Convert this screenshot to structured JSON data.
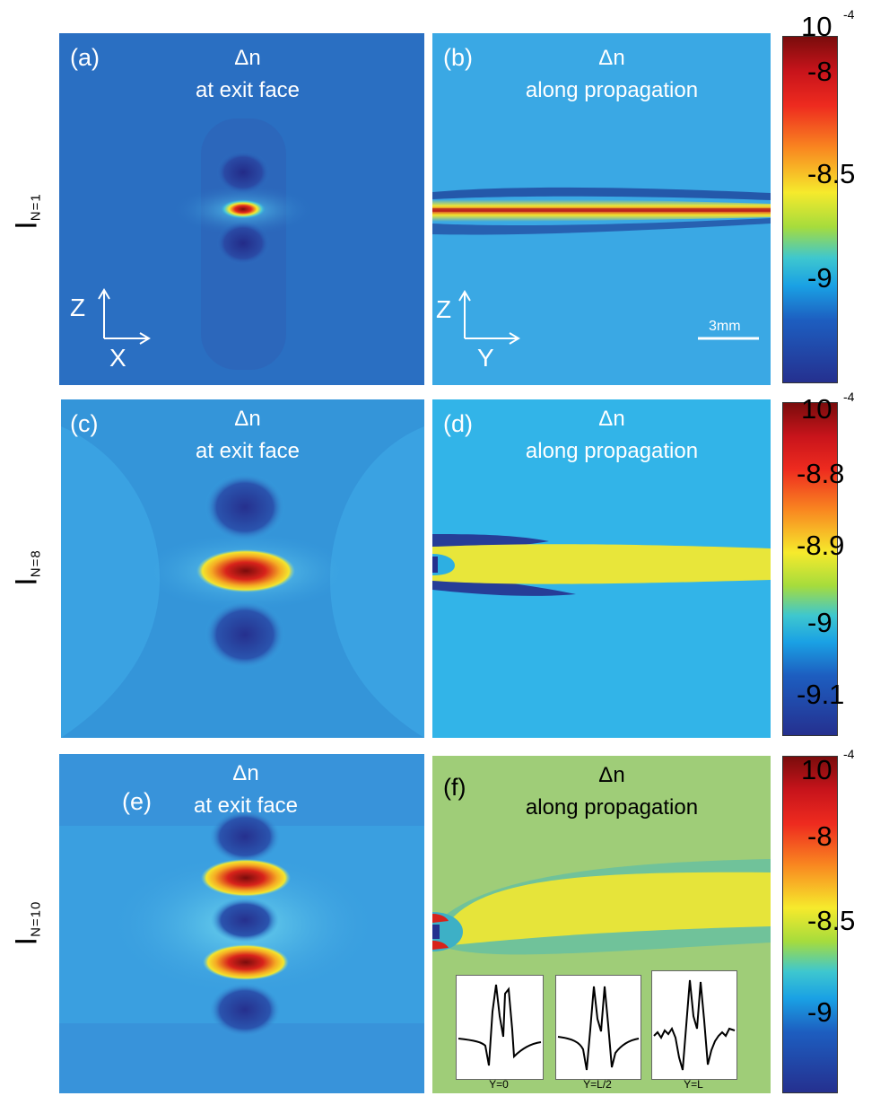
{
  "rows": [
    {
      "label_main": "I",
      "label_sub": "N=1"
    },
    {
      "label_main": "I",
      "label_sub": "N=8"
    },
    {
      "label_main": "I",
      "label_sub": "N=10"
    }
  ],
  "panels": {
    "a": {
      "tag": "(a)",
      "title_1": "Δn",
      "title_2": "at exit face",
      "axis_v": "Z",
      "axis_h": "X"
    },
    "b": {
      "tag": "(b)",
      "title_1": "Δn",
      "title_2": "along propagation",
      "axis_v": "Z",
      "axis_h": "Y",
      "scale": "3mm"
    },
    "c": {
      "tag": "(c)",
      "title_1": "Δn",
      "title_2": "at exit face"
    },
    "d": {
      "tag": "(d)",
      "title_1": "Δn",
      "title_2": "along propagation"
    },
    "e": {
      "tag": "(e)",
      "title_1": "Δn",
      "title_2": "at exit face"
    },
    "f": {
      "tag": "(f)",
      "title_1": "Δn",
      "title_2": "along propagation"
    }
  },
  "colorbars": [
    {
      "exponent": "10",
      "exp_power": "-4",
      "ticks": [
        "-8",
        "-8.5",
        "-9"
      ]
    },
    {
      "exponent": "10",
      "exp_power": "-4",
      "ticks": [
        "-8.8",
        "-8.9",
        "-9",
        "-9.1"
      ]
    },
    {
      "exponent": "10",
      "exp_power": "-4",
      "ticks": [
        "-8",
        "-8.5",
        "-9"
      ]
    }
  ],
  "insets": [
    {
      "caption": "Y=0"
    },
    {
      "caption": "Y=L/2"
    },
    {
      "caption": "Y=L"
    }
  ],
  "colors": {
    "deep_blue": "#1f5fb0",
    "mid_blue": "#2e7dd0",
    "light_blue": "#39a9e6",
    "green_bg": "#9ccb77",
    "yellow": "#f2e530",
    "red": "#d3221c",
    "dark_red": "#7a0c0c",
    "navy": "#26318e"
  }
}
